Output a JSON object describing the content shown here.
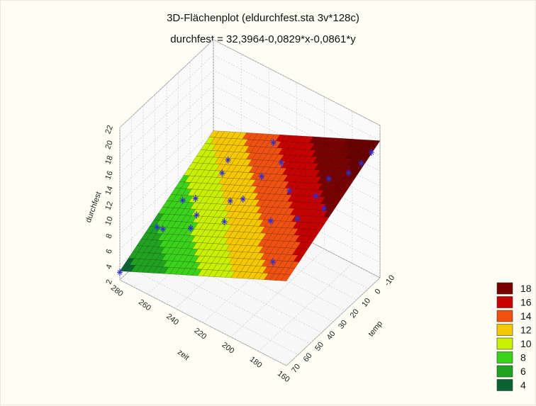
{
  "chart_data": {
    "type": "surface3d",
    "title": "3D-Flächenplot (eldurchfest.sta 3v*128c)",
    "subtitle": "durchfest = 32,3964-0,0829*x-0,0861*y",
    "equation": {
      "intercept": 32.3964,
      "coef_x": -0.0829,
      "coef_y": -0.0861
    },
    "x_axis": {
      "label": "zeit",
      "ticks": [
        160,
        180,
        200,
        220,
        240,
        260,
        280
      ],
      "range": [
        160,
        280
      ]
    },
    "y_axis": {
      "label": "temp",
      "ticks": [
        -10,
        0,
        10,
        20,
        30,
        40,
        50,
        60,
        70
      ],
      "range": [
        -10,
        70
      ]
    },
    "z_axis": {
      "label": "durchfest",
      "ticks": [
        2,
        4,
        6,
        8,
        10,
        12,
        14,
        16,
        18,
        20,
        22
      ],
      "range": [
        2,
        22
      ]
    },
    "legend": {
      "placement": "right",
      "entries": [
        {
          "label": "18",
          "color": "#7a0000"
        },
        {
          "label": "16",
          "color": "#c80000"
        },
        {
          "label": "14",
          "color": "#f05010"
        },
        {
          "label": "12",
          "color": "#f5c800"
        },
        {
          "label": "10",
          "color": "#c8f000"
        },
        {
          "label": "8",
          "color": "#3ad21a"
        },
        {
          "label": "6",
          "color": "#1fa21f"
        },
        {
          "label": "4",
          "color": "#0a6432"
        }
      ]
    },
    "points": [
      {
        "x": 280,
        "y": 70,
        "z": 3
      },
      {
        "x": 270,
        "y": 45,
        "z": 6
      },
      {
        "x": 270,
        "y": 50,
        "z": 7
      },
      {
        "x": 260,
        "y": 40,
        "z": 10
      },
      {
        "x": 255,
        "y": 35,
        "z": 10
      },
      {
        "x": 250,
        "y": 45,
        "z": 8
      },
      {
        "x": 250,
        "y": 40,
        "z": 9
      },
      {
        "x": 240,
        "y": 30,
        "z": 14
      },
      {
        "x": 240,
        "y": 25,
        "z": 15
      },
      {
        "x": 230,
        "y": 35,
        "z": 12
      },
      {
        "x": 230,
        "y": 40,
        "z": 10
      },
      {
        "x": 225,
        "y": 30,
        "z": 12
      },
      {
        "x": 220,
        "y": 20,
        "z": 14
      },
      {
        "x": 220,
        "y": 10,
        "z": 17
      },
      {
        "x": 210,
        "y": 15,
        "z": 16
      },
      {
        "x": 205,
        "y": 30,
        "z": 11
      },
      {
        "x": 200,
        "y": 20,
        "z": 14
      },
      {
        "x": 195,
        "y": 40,
        "z": 8
      },
      {
        "x": 190,
        "y": 25,
        "z": 12
      },
      {
        "x": 185,
        "y": 15,
        "z": 14
      },
      {
        "x": 180,
        "y": 10,
        "z": 16
      },
      {
        "x": 175,
        "y": 20,
        "z": 14
      },
      {
        "x": 170,
        "y": 5,
        "z": 17
      },
      {
        "x": 165,
        "y": 0,
        "z": 18
      },
      {
        "x": 162,
        "y": -5,
        "z": 19
      }
    ]
  }
}
